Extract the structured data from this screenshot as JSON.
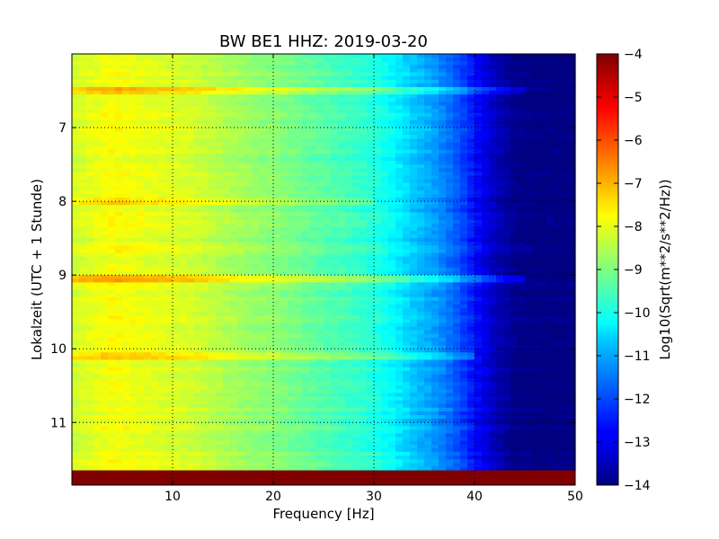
{
  "chart_data": {
    "type": "heatmap",
    "title": "BW BE1 HHZ: 2019-03-20",
    "xlabel": "Frequency [Hz]",
    "ylabel": "Lokalzeit (UTC + 1 Stunde)",
    "colorbar_label": "Log10(Sqrt(m**2/s**2/Hz))",
    "xlim": [
      0,
      50
    ],
    "ylim": [
      11.85,
      6.0
    ],
    "y_inverted": true,
    "x_ticks": [
      10,
      20,
      30,
      40,
      50
    ],
    "y_ticks": [
      7,
      8,
      9,
      10,
      11
    ],
    "clim": [
      -14,
      -4
    ],
    "colorbar_ticks": [
      -4,
      -5,
      -6,
      -7,
      -8,
      -9,
      -10,
      -11,
      -12,
      -13,
      -14
    ],
    "colormap": "jet",
    "grid": true,
    "frequency_hz": [
      0,
      2,
      4,
      6,
      8,
      10,
      12,
      14,
      16,
      18,
      20,
      22,
      24,
      26,
      28,
      30,
      32,
      34,
      36,
      38,
      40,
      42,
      44,
      46,
      48,
      50
    ],
    "psd_profile_log10": [
      -8.2,
      -8.0,
      -7.8,
      -7.9,
      -8.0,
      -8.1,
      -8.2,
      -8.4,
      -8.6,
      -8.8,
      -8.9,
      -9.1,
      -9.3,
      -9.5,
      -9.7,
      -9.9,
      -10.3,
      -10.8,
      -11.2,
      -11.8,
      -12.6,
      -13.4,
      -13.9,
      -14.0,
      -14.0,
      -14.0
    ],
    "bright_rows": [
      {
        "time": 6.5,
        "freq_range": [
          0,
          45
        ],
        "value_offset": 0.8
      },
      {
        "time": 8.0,
        "freq_range": [
          0,
          30
        ],
        "value_offset": 0.5
      },
      {
        "time": 9.05,
        "freq_range": [
          0,
          45
        ],
        "value_offset": 1.0
      },
      {
        "time": 10.1,
        "freq_range": [
          0,
          40
        ],
        "value_offset": 0.7
      }
    ],
    "data_gap": {
      "time_range": [
        11.65,
        11.85
      ],
      "value": -4
    }
  }
}
